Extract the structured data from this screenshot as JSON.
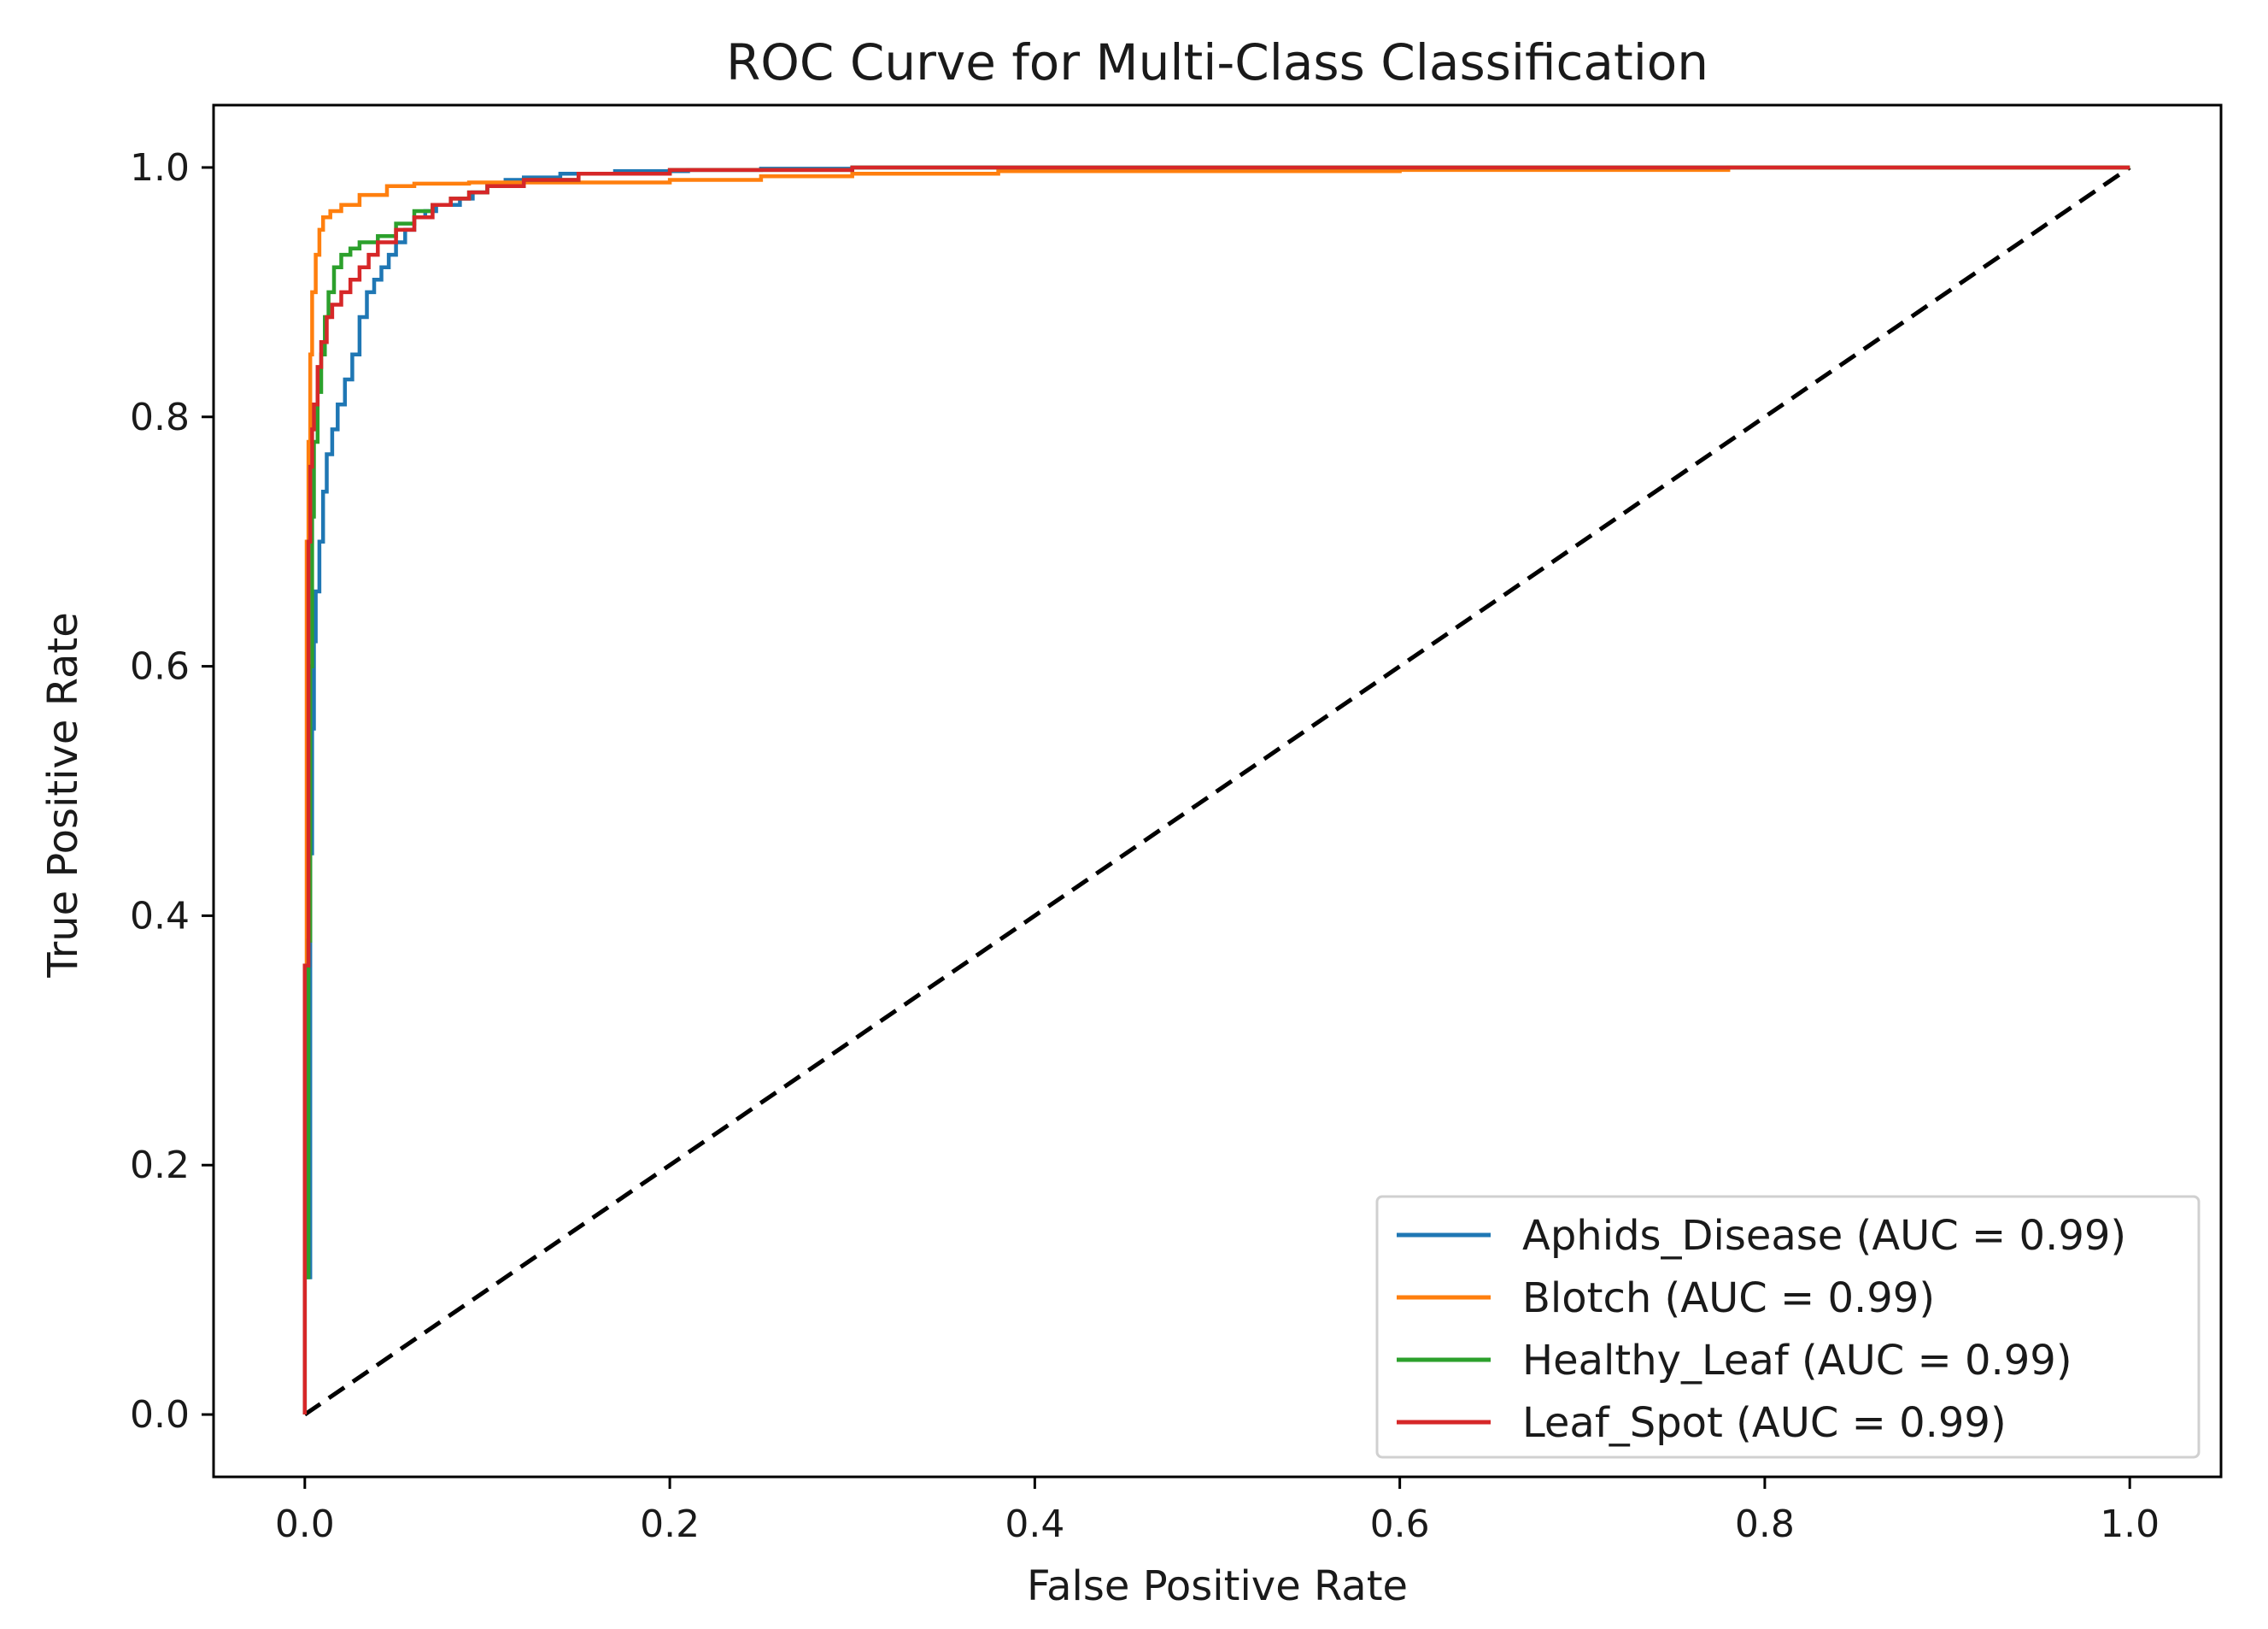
{
  "chart_data": {
    "type": "line",
    "title": "ROC Curve for Multi-Class Classification",
    "xlabel": "False Positive Rate",
    "ylabel": "True Positive Rate",
    "xlim": [
      -0.05,
      1.05
    ],
    "ylim": [
      -0.05,
      1.05
    ],
    "xticks": [
      0.0,
      0.2,
      0.4,
      0.6,
      0.8,
      1.0
    ],
    "yticks": [
      0.0,
      0.2,
      0.4,
      0.6,
      0.8,
      1.0
    ],
    "xtick_labels": [
      "0.0",
      "0.2",
      "0.4",
      "0.6",
      "0.8",
      "1.0"
    ],
    "ytick_labels": [
      "0.0",
      "0.2",
      "0.4",
      "0.6",
      "0.8",
      "1.0"
    ],
    "grid": false,
    "legend_position": "lower-right",
    "series": [
      {
        "name": "Aphids_Disease",
        "label": "Aphids_Disease (AUC = 0.99)",
        "auc": 0.99,
        "color": "#1f77b4",
        "x": [
          0.0,
          0.0,
          0.003,
          0.004,
          0.005,
          0.006,
          0.008,
          0.01,
          0.012,
          0.015,
          0.018,
          0.022,
          0.026,
          0.03,
          0.034,
          0.038,
          0.042,
          0.046,
          0.05,
          0.055,
          0.06,
          0.066,
          0.072,
          0.078,
          0.085,
          0.092,
          0.1,
          0.11,
          0.12,
          0.14,
          0.17,
          0.21,
          0.25,
          0.3,
          1.0
        ],
        "y": [
          0.0,
          0.11,
          0.45,
          0.55,
          0.62,
          0.66,
          0.7,
          0.74,
          0.77,
          0.79,
          0.81,
          0.83,
          0.85,
          0.88,
          0.9,
          0.91,
          0.92,
          0.93,
          0.94,
          0.95,
          0.96,
          0.965,
          0.97,
          0.97,
          0.975,
          0.98,
          0.985,
          0.99,
          0.992,
          0.995,
          0.997,
          0.998,
          0.999,
          1.0,
          1.0
        ]
      },
      {
        "name": "Blotch",
        "label": "Blotch (AUC = 0.99)",
        "auc": 0.99,
        "color": "#ff7f0e",
        "x": [
          0.0,
          0.0,
          0.001,
          0.002,
          0.003,
          0.004,
          0.006,
          0.008,
          0.01,
          0.014,
          0.02,
          0.03,
          0.045,
          0.06,
          0.09,
          0.15,
          0.2,
          0.25,
          0.3,
          0.38,
          0.6,
          0.78,
          1.0
        ],
        "y": [
          0.0,
          0.36,
          0.7,
          0.78,
          0.85,
          0.9,
          0.93,
          0.95,
          0.96,
          0.965,
          0.97,
          0.978,
          0.985,
          0.987,
          0.988,
          0.988,
          0.99,
          0.993,
          0.995,
          0.997,
          0.998,
          1.0,
          1.0
        ]
      },
      {
        "name": "Healthy_Leaf",
        "label": "Healthy_Leaf (AUC = 0.99)",
        "auc": 0.99,
        "color": "#2ca02c",
        "x": [
          0.0,
          0.0,
          0.002,
          0.003,
          0.004,
          0.005,
          0.007,
          0.009,
          0.011,
          0.013,
          0.016,
          0.02,
          0.025,
          0.03,
          0.04,
          0.05,
          0.06,
          0.07,
          0.08,
          0.09,
          0.1,
          0.12,
          0.15,
          0.2,
          0.3,
          1.0
        ],
        "y": [
          0.0,
          0.11,
          0.38,
          0.6,
          0.72,
          0.78,
          0.82,
          0.85,
          0.88,
          0.9,
          0.92,
          0.93,
          0.935,
          0.94,
          0.945,
          0.955,
          0.965,
          0.97,
          0.975,
          0.98,
          0.985,
          0.99,
          0.995,
          0.998,
          1.0,
          1.0
        ]
      },
      {
        "name": "Leaf_Spot",
        "label": "Leaf_Spot (AUC = 0.99)",
        "auc": 0.99,
        "color": "#d62728",
        "x": [
          0.0,
          0.0,
          0.002,
          0.003,
          0.004,
          0.005,
          0.007,
          0.009,
          0.012,
          0.015,
          0.02,
          0.025,
          0.03,
          0.035,
          0.04,
          0.05,
          0.06,
          0.07,
          0.08,
          0.09,
          0.1,
          0.12,
          0.15,
          0.2,
          0.3,
          1.0
        ],
        "y": [
          0.0,
          0.36,
          0.7,
          0.76,
          0.79,
          0.81,
          0.84,
          0.86,
          0.88,
          0.89,
          0.9,
          0.91,
          0.92,
          0.93,
          0.94,
          0.95,
          0.96,
          0.97,
          0.975,
          0.98,
          0.985,
          0.99,
          0.995,
          0.998,
          1.0,
          1.0
        ]
      }
    ],
    "reference_line": {
      "name": "chance",
      "x": [
        0.0,
        1.0
      ],
      "y": [
        0.0,
        1.0
      ],
      "style": "dashed",
      "color": "#000000"
    }
  }
}
